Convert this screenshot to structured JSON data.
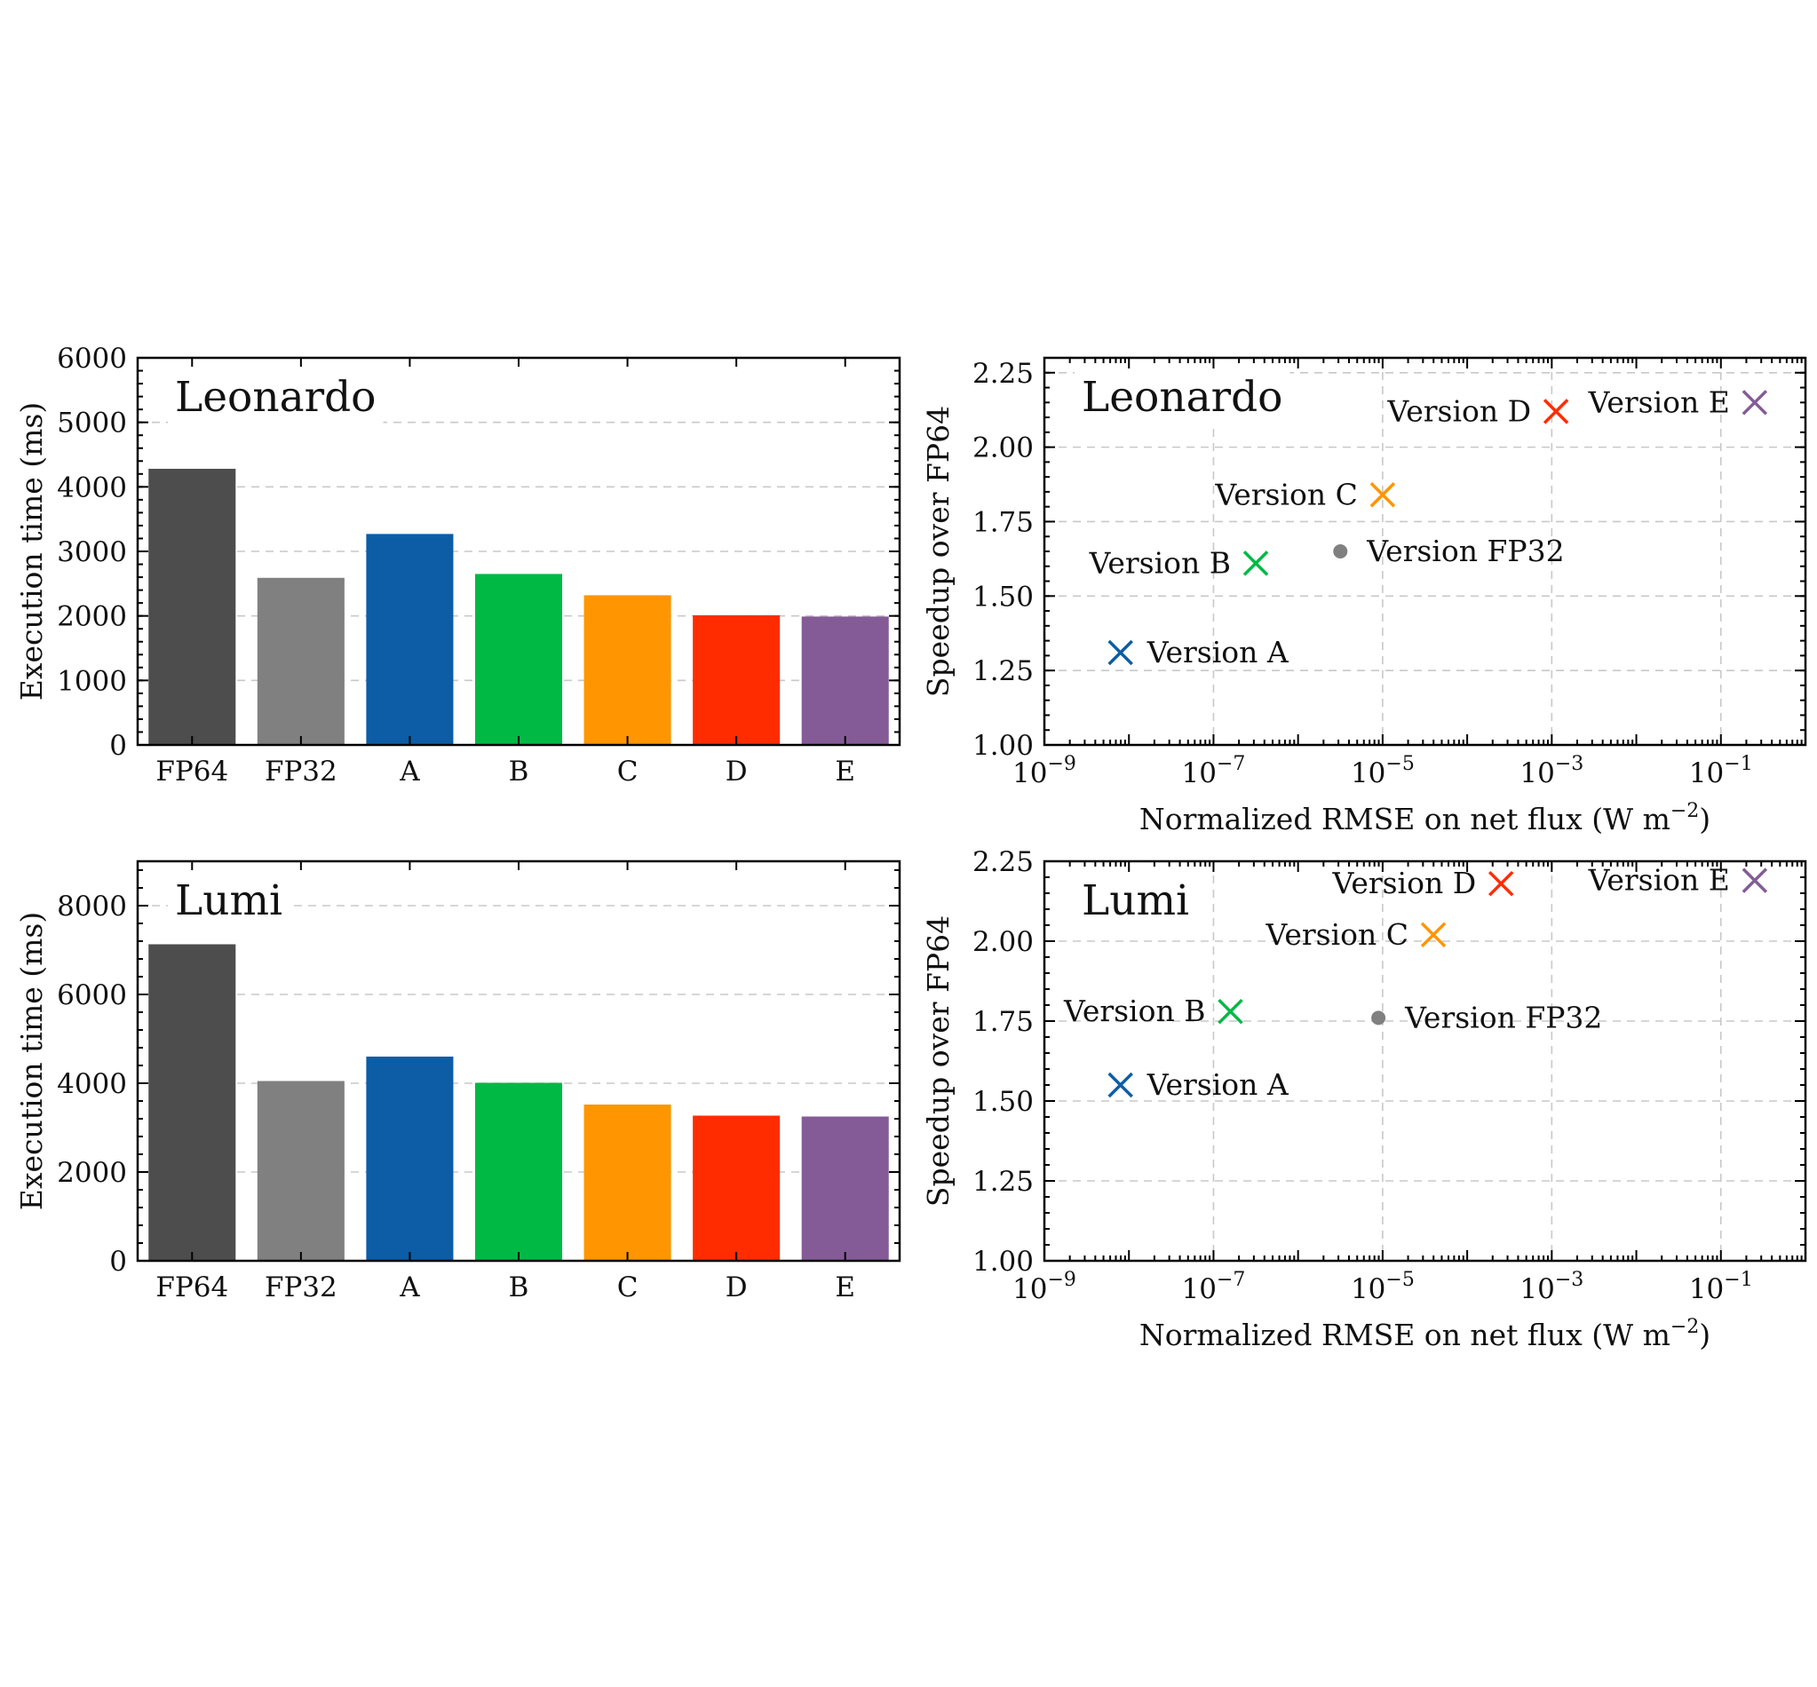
{
  "chart_data": [
    {
      "type": "bar",
      "panel_label": "Leonardo",
      "categories": [
        "FP64",
        "FP32",
        "A",
        "B",
        "C",
        "D",
        "E"
      ],
      "values": [
        4280,
        2590,
        3270,
        2650,
        2320,
        2010,
        1990
      ],
      "colors": [
        "#4d4d4d",
        "#808080",
        "#0c5da5",
        "#00b945",
        "#ff9500",
        "#ff2c00",
        "#845b97"
      ],
      "xlabel": "",
      "ylabel": "Execution time (ms)",
      "ylim": [
        0,
        6000
      ],
      "yticks": [
        0,
        1000,
        2000,
        3000,
        4000,
        5000,
        6000
      ],
      "grid": true
    },
    {
      "type": "scatter",
      "panel_label": "Leonardo",
      "xlabel": "Normalized RMSE on net flux (W m",
      "xlabel_sup": "−2",
      "xlabel_end": ")",
      "ylabel": "Speedup over FP64",
      "xscale": "log",
      "xlim_exp": [
        -9,
        0
      ],
      "ylim": [
        1.0,
        2.3
      ],
      "xticks_exp": [
        -9,
        -7,
        -5,
        -3,
        -1
      ],
      "yticks": [
        1.0,
        1.25,
        1.5,
        1.75,
        2.0,
        2.25
      ],
      "ytick_labels": [
        "1.00",
        "1.25",
        "1.50",
        "1.75",
        "2.00",
        "2.25"
      ],
      "tick_base": "10",
      "grid": true,
      "points": [
        {
          "label": "Version A",
          "x_exp": -8.1,
          "y": 1.31,
          "marker": "x",
          "color": "#0c5da5",
          "label_side": "right"
        },
        {
          "label": "Version B",
          "x_exp": -6.5,
          "y": 1.61,
          "marker": "x",
          "color": "#00b945",
          "label_side": "left"
        },
        {
          "label": "Version FP32",
          "x_exp": -5.5,
          "y": 1.65,
          "marker": "dot",
          "color": "#808080",
          "label_side": "right"
        },
        {
          "label": "Version C",
          "x_exp": -5.0,
          "y": 1.84,
          "marker": "x",
          "color": "#ff9500",
          "label_side": "left"
        },
        {
          "label": "Version D",
          "x_exp": -2.95,
          "y": 2.12,
          "marker": "x",
          "color": "#ff2c00",
          "label_side": "left"
        },
        {
          "label": "Version E",
          "x_exp": -0.6,
          "y": 2.15,
          "marker": "x",
          "color": "#845b97",
          "label_side": "left"
        }
      ]
    },
    {
      "type": "bar",
      "panel_label": "Lumi",
      "categories": [
        "FP64",
        "FP32",
        "A",
        "B",
        "C",
        "D",
        "E"
      ],
      "values": [
        7130,
        4050,
        4600,
        4010,
        3520,
        3270,
        3250
      ],
      "colors": [
        "#4d4d4d",
        "#808080",
        "#0c5da5",
        "#00b945",
        "#ff9500",
        "#ff2c00",
        "#845b97"
      ],
      "xlabel": "",
      "ylabel": "Execution time (ms)",
      "ylim": [
        0,
        9000
      ],
      "yticks": [
        0,
        2000,
        4000,
        6000,
        8000
      ],
      "grid": true
    },
    {
      "type": "scatter",
      "panel_label": "Lumi",
      "xlabel": "Normalized RMSE on net flux (W m",
      "xlabel_sup": "−2",
      "xlabel_end": ")",
      "ylabel": "Speedup over FP64",
      "xscale": "log",
      "xlim_exp": [
        -9,
        0
      ],
      "ylim": [
        1.0,
        2.25
      ],
      "xticks_exp": [
        -9,
        -7,
        -5,
        -3,
        -1
      ],
      "yticks": [
        1.0,
        1.25,
        1.5,
        1.75,
        2.0,
        2.25
      ],
      "ytick_labels": [
        "1.00",
        "1.25",
        "1.50",
        "1.75",
        "2.00",
        "2.25"
      ],
      "tick_base": "10",
      "grid": true,
      "points": [
        {
          "label": "Version A",
          "x_exp": -8.1,
          "y": 1.55,
          "marker": "x",
          "color": "#0c5da5",
          "label_side": "right"
        },
        {
          "label": "Version B",
          "x_exp": -6.8,
          "y": 1.78,
          "marker": "x",
          "color": "#00b945",
          "label_side": "left"
        },
        {
          "label": "Version FP32",
          "x_exp": -5.05,
          "y": 1.76,
          "marker": "dot",
          "color": "#808080",
          "label_side": "right"
        },
        {
          "label": "Version C",
          "x_exp": -4.4,
          "y": 2.02,
          "marker": "x",
          "color": "#ff9500",
          "label_side": "left"
        },
        {
          "label": "Version D",
          "x_exp": -3.6,
          "y": 2.18,
          "marker": "x",
          "color": "#ff2c00",
          "label_side": "left"
        },
        {
          "label": "Version E",
          "x_exp": -0.6,
          "y": 2.19,
          "marker": "x",
          "color": "#845b97",
          "label_side": "left"
        }
      ]
    }
  ]
}
